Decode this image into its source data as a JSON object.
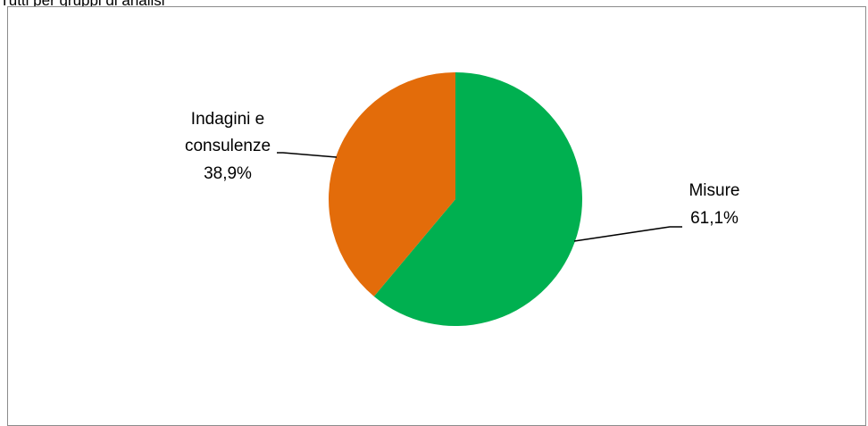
{
  "header": {
    "caption": "Tutti per gruppi di analisi"
  },
  "chart_data": {
    "type": "pie",
    "title": "",
    "slices": [
      {
        "label_line1": "Misure",
        "label_line2": "",
        "value": 61.1,
        "display": "61,1%",
        "color": "#00b050"
      },
      {
        "label_line1": "Indagini e",
        "label_line2": "consulenze",
        "value": 38.9,
        "display": "38,9%",
        "color": "#e36c0a"
      }
    ],
    "start_angle_deg": 0,
    "direction": "clockwise",
    "legend": "none"
  }
}
